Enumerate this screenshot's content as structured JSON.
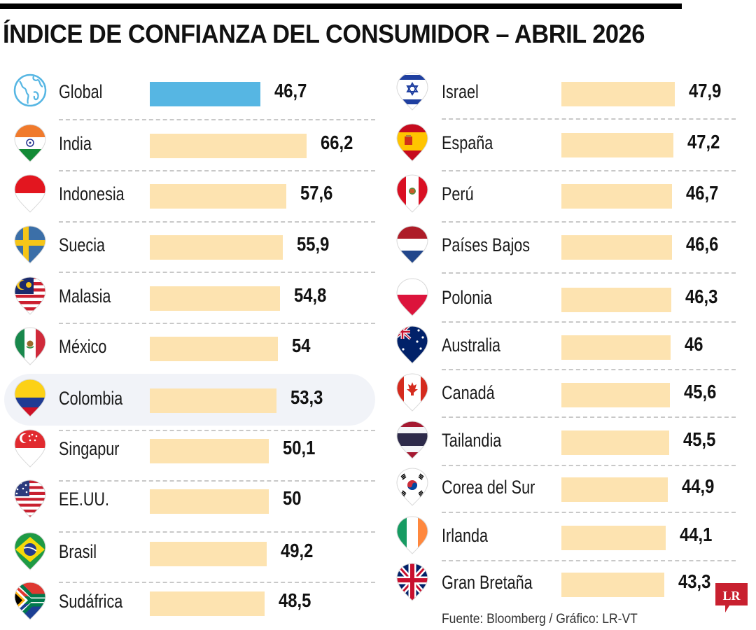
{
  "header": {
    "title": "ÍNDICE DE CONFIANZA DEL CONSUMIDOR – ABRIL 2026"
  },
  "colors": {
    "global_bar": "#56b6e3",
    "country_bar": "#fde3b0",
    "highlight_row": "#f1f3f8",
    "logo": "#c8202f"
  },
  "footer": {
    "source": "Fuente: Bloomberg / Gráfico: LR-VT",
    "logo_text": "LR"
  },
  "chart_data": {
    "type": "bar",
    "orientation": "horizontal",
    "title": "ÍNDICE DE CONFIANZA DEL CONSUMIDOR – ABRIL 2026",
    "xlabel": "",
    "ylabel": "",
    "highlighted": "Colombia",
    "columns": [
      {
        "items": [
          {
            "name": "Global",
            "value": 46.7,
            "label": "46,7",
            "icon": "globe-icon"
          },
          {
            "name": "India",
            "value": 66.2,
            "label": "66,2",
            "icon": "flag-india-icon"
          },
          {
            "name": "Indonesia",
            "value": 57.6,
            "label": "57,6",
            "icon": "flag-indonesia-icon"
          },
          {
            "name": "Suecia",
            "value": 55.9,
            "label": "55,9",
            "icon": "flag-sweden-icon"
          },
          {
            "name": "Malasia",
            "value": 54.8,
            "label": "54,8",
            "icon": "flag-malaysia-icon"
          },
          {
            "name": "México",
            "value": 54,
            "label": "54",
            "icon": "flag-mexico-icon"
          },
          {
            "name": "Colombia",
            "value": 53.3,
            "label": "53,3",
            "icon": "flag-colombia-icon"
          },
          {
            "name": "Singapur",
            "value": 50.1,
            "label": "50,1",
            "icon": "flag-singapore-icon"
          },
          {
            "name": "EE.UU.",
            "value": 50,
            "label": "50",
            "icon": "flag-usa-icon"
          },
          {
            "name": "Brasil",
            "value": 49.2,
            "label": "49,2",
            "icon": "flag-brazil-icon"
          },
          {
            "name": "Sudáfrica",
            "value": 48.5,
            "label": "48,5",
            "icon": "flag-south-africa-icon"
          }
        ]
      },
      {
        "items": [
          {
            "name": "Israel",
            "value": 47.9,
            "label": "47,9",
            "icon": "flag-israel-icon"
          },
          {
            "name": "España",
            "value": 47.2,
            "label": "47,2",
            "icon": "flag-spain-icon"
          },
          {
            "name": "Perú",
            "value": 46.7,
            "label": "46,7",
            "icon": "flag-peru-icon"
          },
          {
            "name": "Países Bajos",
            "value": 46.6,
            "label": "46,6",
            "icon": "flag-netherlands-icon"
          },
          {
            "name": "Polonia",
            "value": 46.3,
            "label": "46,3",
            "icon": "flag-poland-icon"
          },
          {
            "name": "Australia",
            "value": 46,
            "label": "46",
            "icon": "flag-australia-icon"
          },
          {
            "name": "Canadá",
            "value": 45.6,
            "label": "45,6",
            "icon": "flag-canada-icon"
          },
          {
            "name": "Tailandia",
            "value": 45.5,
            "label": "45,5",
            "icon": "flag-thailand-icon"
          },
          {
            "name": "Corea del Sur",
            "value": 44.9,
            "label": "44,9",
            "icon": "flag-south-korea-icon"
          },
          {
            "name": "Irlanda",
            "value": 44.1,
            "label": "44,1",
            "icon": "flag-ireland-icon"
          },
          {
            "name": "Gran Bretaña",
            "value": 43.3,
            "label": "43,3",
            "icon": "flag-uk-icon"
          }
        ]
      }
    ]
  }
}
